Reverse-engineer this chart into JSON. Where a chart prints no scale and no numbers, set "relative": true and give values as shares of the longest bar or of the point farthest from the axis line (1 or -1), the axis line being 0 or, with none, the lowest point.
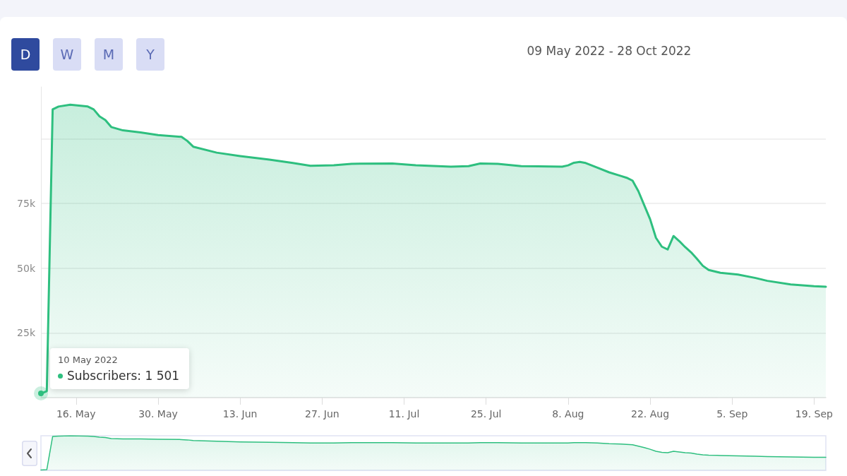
{
  "chart_data": [
    {
      "type": "area",
      "title": "09 May 2022 - 28 Oct 2022",
      "x": [
        "2022-05-10",
        "2022-05-11",
        "2022-05-12",
        "2022-05-13",
        "2022-05-15",
        "2022-05-18",
        "2022-05-19",
        "2022-05-20",
        "2022-05-21",
        "2022-05-22",
        "2022-05-24",
        "2022-05-27",
        "2022-05-30",
        "2022-06-03",
        "2022-06-04",
        "2022-06-05",
        "2022-06-09",
        "2022-06-13",
        "2022-06-18",
        "2022-06-22",
        "2022-06-25",
        "2022-06-29",
        "2022-07-02",
        "2022-07-09",
        "2022-07-13",
        "2022-07-19",
        "2022-07-22",
        "2022-07-24",
        "2022-07-27",
        "2022-07-31",
        "2022-08-07",
        "2022-08-08",
        "2022-08-09",
        "2022-08-10",
        "2022-08-11",
        "2022-08-13",
        "2022-08-15",
        "2022-08-17",
        "2022-08-18",
        "2022-08-19",
        "2022-08-20",
        "2022-08-21",
        "2022-08-22",
        "2022-08-23",
        "2022-08-24",
        "2022-08-25",
        "2022-08-26",
        "2022-08-27",
        "2022-08-28",
        "2022-08-29",
        "2022-08-30",
        "2022-08-31",
        "2022-09-01",
        "2022-09-03",
        "2022-09-06",
        "2022-09-09",
        "2022-09-11",
        "2022-09-15",
        "2022-09-19",
        "2022-09-21"
      ],
      "series": [
        {
          "color": "#2ebf7f",
          "values": [
            1501,
            2500,
            111300,
            112400,
            113100,
            112400,
            111300,
            108600,
            107200,
            104500,
            103200,
            102400,
            101400,
            100700,
            99100,
            96900,
            94600,
            93300,
            91900,
            90600,
            89500,
            89700,
            90300,
            90400,
            89700,
            89200,
            89400,
            90400,
            90300,
            89400,
            89200,
            89700,
            90700,
            91000,
            90600,
            88800,
            87000,
            85600,
            84900,
            83800,
            79700,
            74300,
            68900,
            61700,
            58300,
            57200,
            62400,
            60400,
            58100,
            56100,
            53600,
            50900,
            49300,
            48200,
            47500,
            46200,
            45100,
            43700,
            43000,
            42800
          ]
        }
      ],
      "annotations": [
        "D",
        "W",
        "M",
        "Y",
        "10 May 2022",
        {
          "text": "Subscribers: 1 501",
          "x": "2022-05-10",
          "y": 1501
        }
      ],
      "xlim": [
        "2022-05-10",
        "2022-09-21"
      ],
      "ylim": [
        0,
        120000
      ],
      "xticks": [
        {
          "value": "2022-05-16",
          "label": "16. May"
        },
        {
          "value": "2022-05-30",
          "label": "30. May"
        },
        {
          "value": "2022-06-13",
          "label": "13. Jun"
        },
        {
          "value": "2022-06-27",
          "label": "27. Jun"
        },
        {
          "value": "2022-07-11",
          "label": "11. Jul"
        },
        {
          "value": "2022-07-25",
          "label": "25. Jul"
        },
        {
          "value": "2022-08-08",
          "label": "8. Aug"
        },
        {
          "value": "2022-08-22",
          "label": "22. Aug"
        },
        {
          "value": "2022-09-05",
          "label": "5. Sep"
        },
        {
          "value": "2022-09-19",
          "label": "19. Sep"
        }
      ],
      "yticks": [
        {
          "value": 0,
          "label": null
        },
        {
          "value": 25000,
          "label": "25k"
        },
        {
          "value": 50000,
          "label": "50k"
        },
        {
          "value": 75000,
          "label": "75k"
        },
        {
          "value": 100000,
          "label": null
        }
      ],
      "grid": "y",
      "marker": "none",
      "line_style": "solid"
    },
    {
      "type": "area",
      "relative": true,
      "x": [
        "2022-05-10",
        "2022-05-11",
        "2022-05-12",
        "2022-05-13",
        "2022-05-15",
        "2022-05-18",
        "2022-05-19",
        "2022-05-20",
        "2022-05-21",
        "2022-05-22",
        "2022-05-24",
        "2022-05-27",
        "2022-05-30",
        "2022-06-03",
        "2022-06-04",
        "2022-06-05",
        "2022-06-09",
        "2022-06-13",
        "2022-06-18",
        "2022-06-22",
        "2022-06-25",
        "2022-06-29",
        "2022-07-02",
        "2022-07-09",
        "2022-07-13",
        "2022-07-19",
        "2022-07-22",
        "2022-07-24",
        "2022-07-27",
        "2022-07-31",
        "2022-08-07",
        "2022-08-08",
        "2022-08-09",
        "2022-08-10",
        "2022-08-11",
        "2022-08-13",
        "2022-08-15",
        "2022-08-17",
        "2022-08-18",
        "2022-08-19",
        "2022-08-20",
        "2022-08-21",
        "2022-08-22",
        "2022-08-23",
        "2022-08-24",
        "2022-08-25",
        "2022-08-26",
        "2022-08-27",
        "2022-08-28",
        "2022-08-29",
        "2022-08-30",
        "2022-08-31",
        "2022-09-01",
        "2022-09-03",
        "2022-09-06",
        "2022-09-09",
        "2022-09-11",
        "2022-09-15",
        "2022-09-19",
        "2022-09-21"
      ],
      "series": [
        {
          "color": "#2ebf7f",
          "values": [
            0.01,
            0.02,
            0.98,
            0.99,
            1,
            0.99,
            0.98,
            0.96,
            0.95,
            0.92,
            0.91,
            0.91,
            0.9,
            0.89,
            0.88,
            0.86,
            0.84,
            0.82,
            0.81,
            0.8,
            0.79,
            0.79,
            0.8,
            0.8,
            0.79,
            0.79,
            0.79,
            0.8,
            0.8,
            0.79,
            0.79,
            0.79,
            0.8,
            0.8,
            0.8,
            0.79,
            0.77,
            0.76,
            0.75,
            0.74,
            0.7,
            0.66,
            0.61,
            0.55,
            0.52,
            0.51,
            0.55,
            0.53,
            0.51,
            0.5,
            0.47,
            0.45,
            0.44,
            0.43,
            0.42,
            0.41,
            0.4,
            0.39,
            0.38,
            0.38
          ]
        }
      ],
      "xlim": [
        "2022-05-10",
        "2022-09-21"
      ],
      "marker": "none",
      "line_style": "solid"
    }
  ]
}
